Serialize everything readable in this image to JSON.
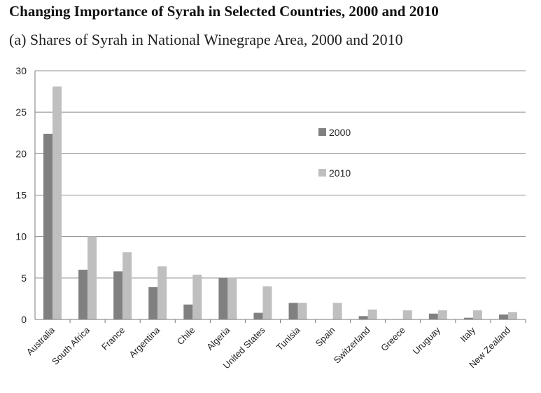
{
  "title": "Changing Importance of Syrah in Selected Countries, 2000 and 2010",
  "subtitle": "(a)  Shares of Syrah in National Winegrape Area, 2000 and 2010",
  "colors": {
    "s2000": "#808080",
    "s2010": "#bfbfbf",
    "grid": "#8c8c8c"
  },
  "chart_data": {
    "type": "bar",
    "categories": [
      "Australia",
      "South Africa",
      "France",
      "Argentina",
      "Chile",
      "Algeria",
      "United States",
      "Tunisia",
      "Spain",
      "Switzerland",
      "Greece",
      "Uruguay",
      "Italy",
      "New Zealand"
    ],
    "series": [
      {
        "name": "2000",
        "values": [
          22.4,
          6.0,
          5.8,
          3.9,
          1.8,
          5.0,
          0.8,
          2.0,
          0.0,
          0.4,
          0.05,
          0.7,
          0.2,
          0.6
        ]
      },
      {
        "name": "2010",
        "values": [
          28.1,
          10.0,
          8.1,
          6.4,
          5.4,
          5.0,
          4.0,
          2.0,
          2.0,
          1.2,
          1.1,
          1.1,
          1.1,
          0.9
        ]
      }
    ],
    "ylim": [
      0,
      30
    ],
    "yticks": [
      "0",
      "5",
      "10",
      "15",
      "20",
      "25",
      "30"
    ],
    "xlabel": "",
    "ylabel": "",
    "grid": true,
    "legend": "upper-middle"
  }
}
